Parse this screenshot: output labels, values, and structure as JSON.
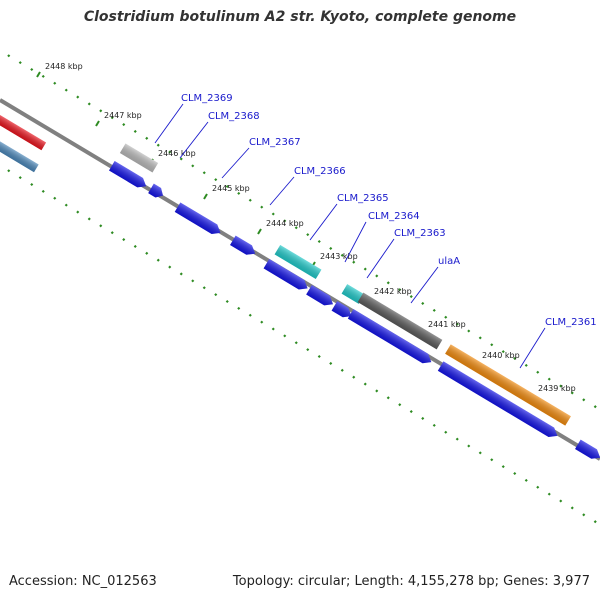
{
  "title": "Clostridium botulinum A2 str. Kyoto, complete genome",
  "footer": {
    "accession": "Accession: NC_012563",
    "summary": "Topology: circular; Length: 4,155,278 bp; Genes: 3,977"
  },
  "colors": {
    "backbone": "#808080",
    "tick": "#2e8b22",
    "gene_label": "#1a1acc",
    "cds": "#1414e6",
    "red_gene": "#e8141e",
    "steelblue_gene": "#4a86b8",
    "silver_gene": "#b8b8b8",
    "cyan_gene": "#20c8c8",
    "dark_gene": "#5a5a5a",
    "orange_gene": "#f08a0e"
  },
  "ticks": [
    "2448 kbp",
    "2447 kbp",
    "2446 kbp",
    "2445 kbp",
    "2444 kbp",
    "2443 kbp",
    "2442 kbp",
    "2441 kbp",
    "2440 kbp",
    "2439 kbp"
  ],
  "genes": [
    "CLM_2369",
    "CLM_2368",
    "CLM_2367",
    "CLM_2366",
    "CLM_2365",
    "CLM_2364",
    "CLM_2363",
    "ulaA",
    "CLM_2361"
  ]
}
